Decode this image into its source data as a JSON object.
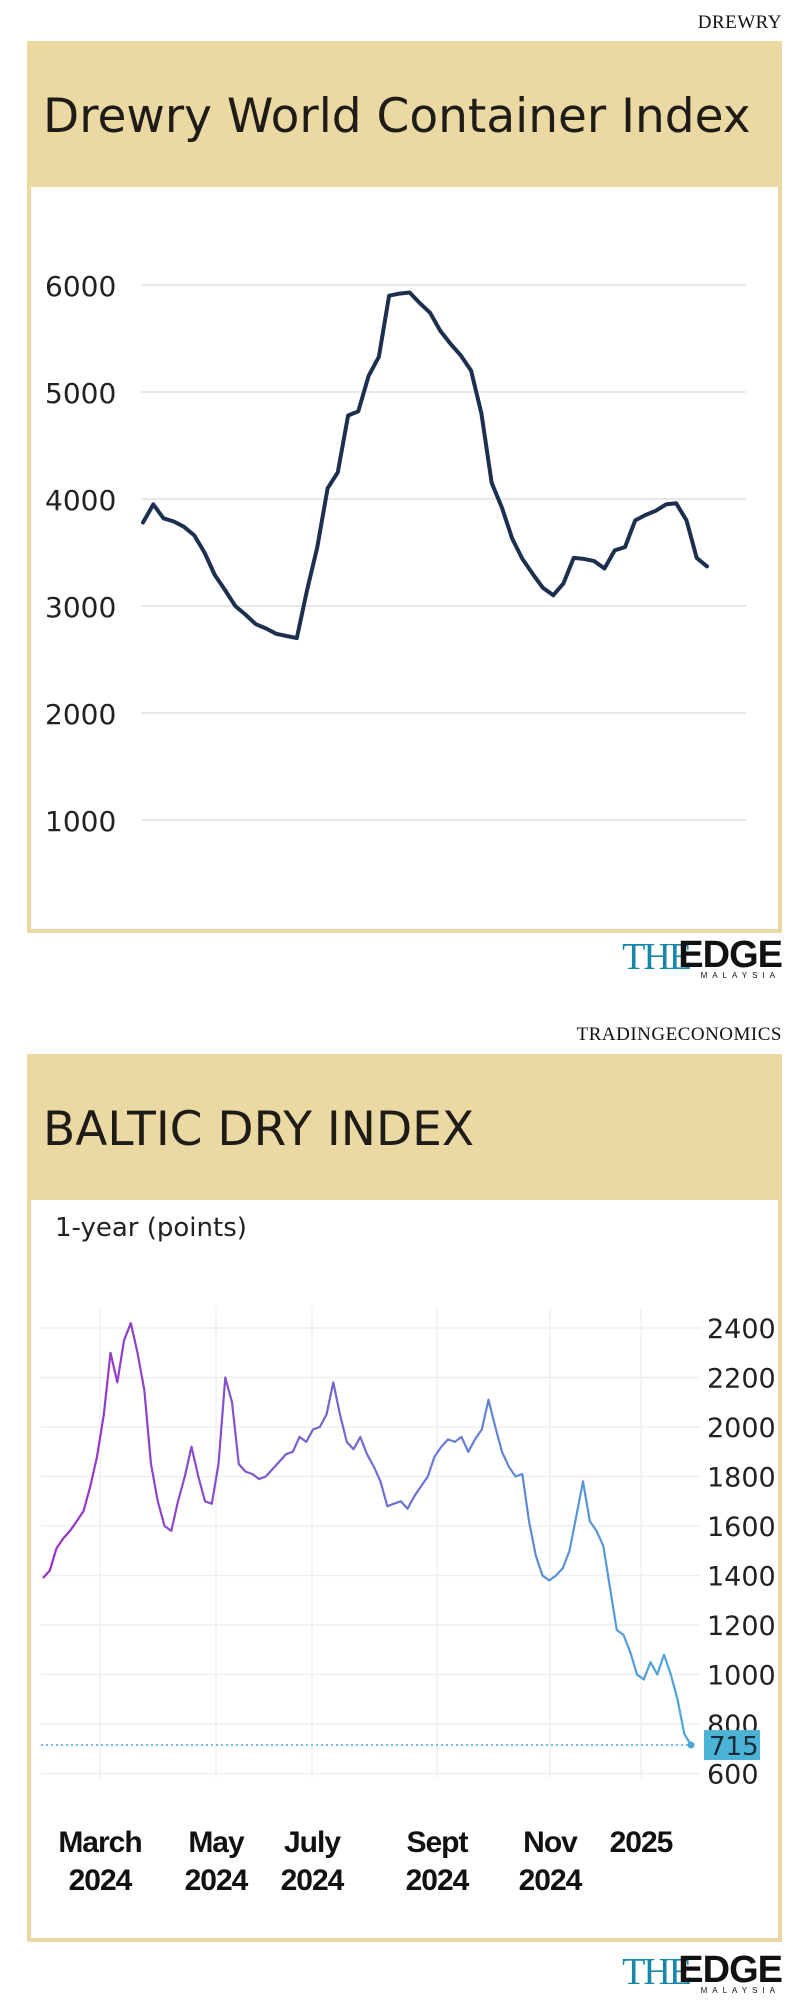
{
  "top_source": "DREWRY",
  "bottom_source": "TRADINGECONOMICS",
  "logo": {
    "the": "THE",
    "edge": "EDGE",
    "country": "MALAYSIA",
    "brand_color": "#1687a7"
  },
  "colors": {
    "panel_header": "#ead9a3",
    "drewry_line": "#1c2f4f",
    "baltic_line_start": "#9b2fc9",
    "baltic_line_end": "#4aa9d9",
    "last_badge": "#4bb4d6"
  },
  "chart_data": [
    {
      "type": "line",
      "title": "Drewry World Container Index",
      "xlabel": "",
      "ylabel": "",
      "ylim": [
        0,
        7000
      ],
      "yticks": [
        "6000",
        "5000",
        "4000",
        "3000",
        "2000",
        "1000"
      ],
      "grid": true,
      "series": [
        {
          "values": [
            3780,
            3950,
            3820,
            3790,
            3740,
            3660,
            3500,
            3290,
            3150,
            3000,
            2920,
            2830,
            2790,
            2740,
            2720,
            2700,
            3150,
            3550,
            4100,
            4250,
            4780,
            4820,
            5150,
            5330,
            5900,
            5920,
            5930,
            5830,
            5740,
            5570,
            5450,
            5340,
            5200,
            4800,
            4150,
            3920,
            3630,
            3440,
            3300,
            3170,
            3100,
            3210,
            3450,
            3440,
            3420,
            3350,
            3520,
            3550,
            3800,
            3850,
            3890,
            3950,
            3960,
            3800,
            3450,
            3370
          ]
        }
      ]
    },
    {
      "type": "line",
      "title": "BALTIC DRY INDEX",
      "subtitle": "1-year (points)",
      "xlabel": "",
      "ylabel": "",
      "ylim": [
        550,
        2500
      ],
      "yticks": [
        "2400",
        "2200",
        "2000",
        "1800",
        "1600",
        "1400",
        "1200",
        "1000",
        "800",
        "600"
      ],
      "x_ticks": [
        {
          "line1": "March",
          "line2": "2024"
        },
        {
          "line1": "May",
          "line2": "2024"
        },
        {
          "line1": "July",
          "line2": "2024"
        },
        {
          "line1": "Sept",
          "line2": "2024"
        },
        {
          "line1": "Nov",
          "line2": "2024"
        },
        {
          "line1": "2025",
          "line2": ""
        }
      ],
      "last_value": "715",
      "grid": true,
      "series": [
        {
          "values": [
            1390,
            1420,
            1510,
            1550,
            1580,
            1620,
            1660,
            1760,
            1880,
            2050,
            2300,
            2180,
            2350,
            2420,
            2300,
            2150,
            1850,
            1700,
            1600,
            1580,
            1700,
            1800,
            1920,
            1800,
            1700,
            1690,
            1850,
            2200,
            2100,
            1850,
            1820,
            1810,
            1790,
            1800,
            1830,
            1860,
            1890,
            1900,
            1960,
            1940,
            1990,
            2000,
            2050,
            2180,
            2050,
            1940,
            1910,
            1960,
            1890,
            1840,
            1780,
            1680,
            1690,
            1700,
            1670,
            1720,
            1760,
            1800,
            1880,
            1920,
            1950,
            1940,
            1960,
            1900,
            1950,
            1990,
            2110,
            2000,
            1900,
            1840,
            1800,
            1810,
            1620,
            1480,
            1400,
            1380,
            1400,
            1430,
            1500,
            1640,
            1780,
            1620,
            1580,
            1520,
            1350,
            1180,
            1160,
            1090,
            1000,
            980,
            1050,
            1000,
            1080,
            1000,
            900,
            760,
            715
          ]
        }
      ]
    }
  ]
}
